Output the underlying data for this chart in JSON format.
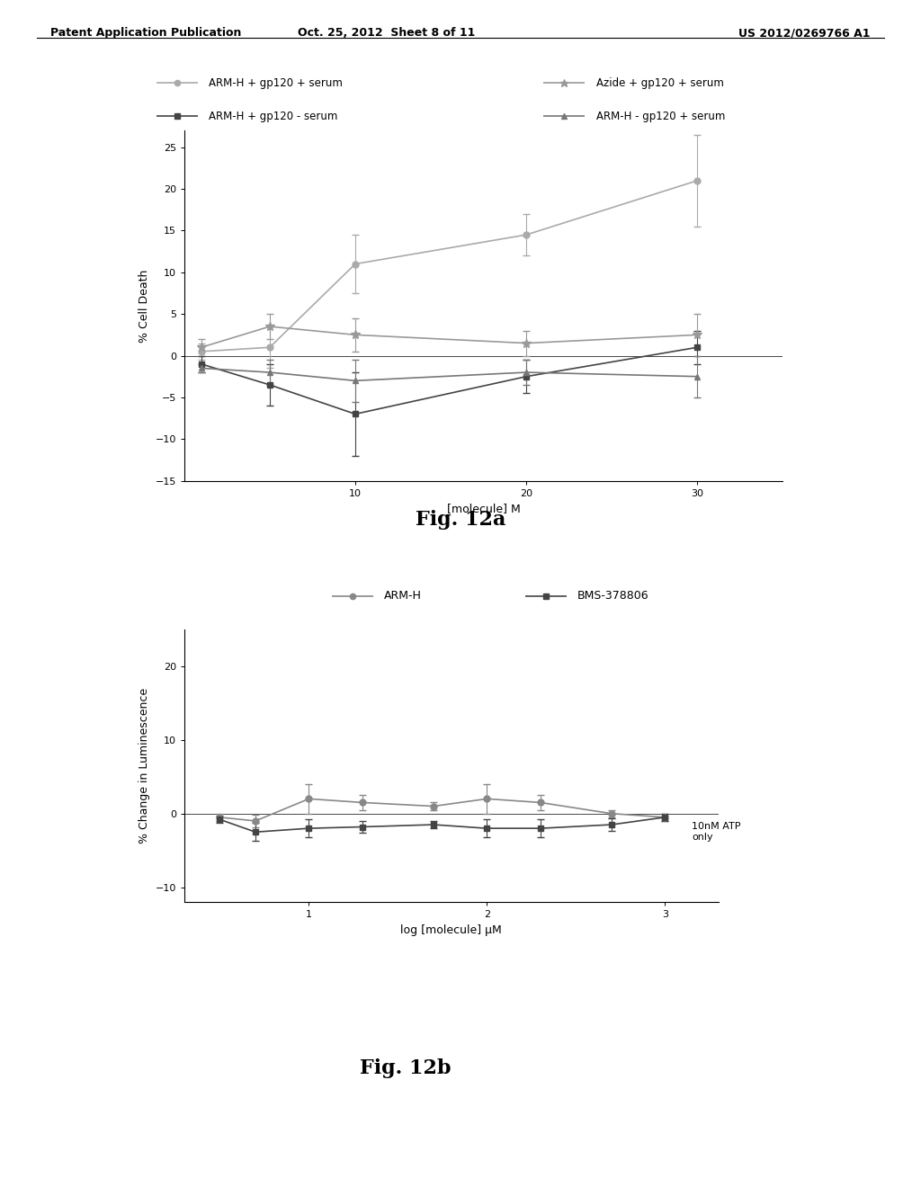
{
  "fig12a": {
    "ylabel": "% Cell Death",
    "xlabel": "[molecule] M",
    "xlim": [
      0,
      35
    ],
    "ylim": [
      -15,
      27
    ],
    "yticks": [
      -15,
      -10,
      -5,
      0,
      5,
      10,
      15,
      20,
      25
    ],
    "xticks": [
      10,
      20,
      30
    ],
    "series": [
      {
        "label": "ARM-H + gp120 + serum",
        "x": [
          1,
          5,
          10,
          20,
          30
        ],
        "y": [
          0.5,
          1.0,
          11.0,
          14.5,
          21.0
        ],
        "yerr": [
          1.0,
          2.5,
          3.5,
          2.5,
          5.5
        ],
        "color": "#aaaaaa",
        "marker": "o",
        "markersize": 5,
        "linewidth": 1.2,
        "linestyle": "-"
      },
      {
        "label": "Azide + gp120 + serum",
        "x": [
          1,
          5,
          10,
          20,
          30
        ],
        "y": [
          1.0,
          3.5,
          2.5,
          1.5,
          2.5
        ],
        "yerr": [
          1.0,
          1.5,
          2.0,
          1.5,
          2.5
        ],
        "color": "#999999",
        "marker": "*",
        "markersize": 7,
        "linewidth": 1.2,
        "linestyle": "-"
      },
      {
        "label": "ARM-H + gp120 - serum",
        "x": [
          1,
          5,
          10,
          20,
          30
        ],
        "y": [
          -1.0,
          -3.5,
          -7.0,
          -2.5,
          1.0
        ],
        "yerr": [
          1.0,
          2.5,
          5.0,
          2.0,
          2.0
        ],
        "color": "#444444",
        "marker": "s",
        "markersize": 5,
        "linewidth": 1.2,
        "linestyle": "-"
      },
      {
        "label": "ARM-H - gp120 + serum",
        "x": [
          1,
          5,
          10,
          20,
          30
        ],
        "y": [
          -1.5,
          -2.0,
          -3.0,
          -2.0,
          -2.5
        ],
        "yerr": [
          0.5,
          1.5,
          2.5,
          1.5,
          2.5
        ],
        "color": "#777777",
        "marker": "^",
        "markersize": 5,
        "linewidth": 1.2,
        "linestyle": "-"
      }
    ]
  },
  "fig12b": {
    "ylabel": "% Change in Luminescence",
    "xlabel": "log [molecule] μM",
    "annotation": "10nM ATP\nonly",
    "xlim": [
      0.3,
      3.3
    ],
    "ylim": [
      -12,
      25
    ],
    "yticks": [
      -10,
      0,
      10,
      20
    ],
    "xticks": [
      1,
      2,
      3
    ],
    "series": [
      {
        "label": "ARM-H",
        "x": [
          0.5,
          0.7,
          1.0,
          1.3,
          1.7,
          2.0,
          2.3,
          2.7,
          3.0
        ],
        "y": [
          -0.5,
          -1.0,
          2.0,
          1.5,
          1.0,
          2.0,
          1.5,
          0.0,
          -0.5
        ],
        "yerr": [
          0.5,
          0.8,
          2.0,
          1.0,
          0.5,
          2.0,
          1.0,
          0.5,
          0.5
        ],
        "color": "#888888",
        "marker": "o",
        "markersize": 5,
        "linewidth": 1.2,
        "linestyle": "-"
      },
      {
        "label": "BMS-378806",
        "x": [
          0.5,
          0.7,
          1.0,
          1.3,
          1.7,
          2.0,
          2.3,
          2.7,
          3.0
        ],
        "y": [
          -0.8,
          -2.5,
          -2.0,
          -1.8,
          -1.5,
          -2.0,
          -2.0,
          -1.5,
          -0.5
        ],
        "yerr": [
          0.5,
          1.2,
          1.2,
          0.8,
          0.5,
          1.2,
          1.2,
          0.8,
          0.5
        ],
        "color": "#444444",
        "marker": "s",
        "markersize": 5,
        "linewidth": 1.2,
        "linestyle": "-"
      }
    ]
  },
  "header": {
    "left": "Patent Application Publication",
    "center": "Oct. 25, 2012  Sheet 8 of 11",
    "right": "US 2012/0269766 A1"
  },
  "fig12a_label": "Fig. 12a",
  "fig12b_label": "Fig. 12b",
  "bg_color": "#ffffff",
  "text_color": "#000000"
}
